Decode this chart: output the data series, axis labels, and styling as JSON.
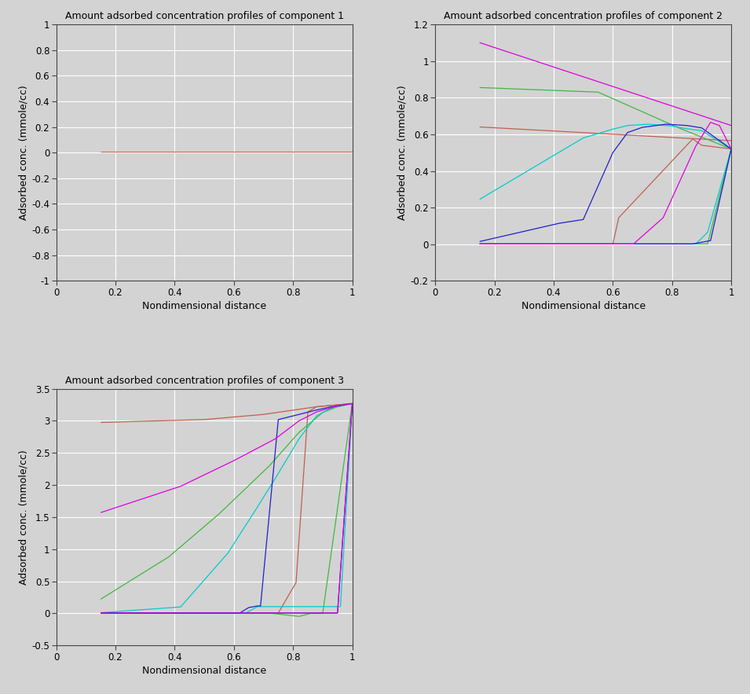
{
  "background_color": "#d3d3d3",
  "axes_color": "#d3d3d3",
  "grid_color": "#ffffff",
  "title1": "Amount adsorbed concentration profiles of component 1",
  "title2": "Amount adsorbed concentration profiles of component 2",
  "title3": "Amount adsorbed concentration profiles of component 3",
  "xlabel": "Nondimensional distance",
  "ylabel": "Adsorbed conc. (mmole/cc)",
  "comp1": {
    "ylim": [
      -1,
      1
    ],
    "yticks": [
      -1,
      -0.8,
      -0.6,
      -0.4,
      -0.2,
      0,
      0.2,
      0.4,
      0.6,
      0.8,
      1
    ],
    "xlim": [
      0,
      1
    ],
    "xticks": [
      0,
      0.2,
      0.4,
      0.6,
      0.8,
      1
    ],
    "lines": [
      {
        "x": [
          0.15,
          1.0
        ],
        "y": [
          0.008,
          0.008
        ],
        "color": "#c87060",
        "lw": 0.9
      }
    ]
  },
  "comp2": {
    "ylim": [
      -0.2,
      1.2
    ],
    "yticks": [
      -0.2,
      0,
      0.2,
      0.4,
      0.6,
      0.8,
      1.0,
      1.2
    ],
    "xlim": [
      0,
      1
    ],
    "xticks": [
      0,
      0.2,
      0.4,
      0.6,
      0.8,
      1
    ],
    "lines": [
      {
        "x": [
          0.15,
          1.0
        ],
        "y": [
          0.64,
          0.565
        ],
        "color": "#c06050",
        "lw": 0.9
      },
      {
        "x": [
          0.15,
          0.6,
          0.62,
          0.87,
          0.9,
          1.0
        ],
        "y": [
          0.002,
          0.002,
          0.145,
          0.575,
          0.54,
          0.52
        ],
        "color": "#c06050",
        "lw": 0.9
      },
      {
        "x": [
          0.15,
          0.55,
          0.83,
          1.0
        ],
        "y": [
          0.855,
          0.83,
          0.63,
          0.52
        ],
        "color": "#40b840",
        "lw": 0.9
      },
      {
        "x": [
          0.15,
          0.68,
          0.88,
          0.92,
          1.0
        ],
        "y": [
          0.002,
          0.002,
          0.002,
          0.002,
          0.52
        ],
        "color": "#40b840",
        "lw": 0.9
      },
      {
        "x": [
          0.15,
          0.5,
          0.6,
          0.65,
          0.72,
          0.8,
          0.85,
          0.9,
          1.0
        ],
        "y": [
          0.245,
          0.58,
          0.628,
          0.648,
          0.655,
          0.645,
          0.63,
          0.62,
          0.52
        ],
        "color": "#00cccc",
        "lw": 0.9
      },
      {
        "x": [
          0.15,
          0.68,
          0.72,
          0.88,
          0.92,
          1.0
        ],
        "y": [
          0.002,
          0.002,
          0.002,
          0.002,
          0.065,
          0.52
        ],
        "color": "#00cccc",
        "lw": 0.9
      },
      {
        "x": [
          0.15,
          0.42,
          0.5,
          0.6,
          0.65,
          0.7,
          0.78,
          0.85,
          0.9,
          1.0
        ],
        "y": [
          0.015,
          0.115,
          0.135,
          0.5,
          0.61,
          0.638,
          0.655,
          0.648,
          0.635,
          0.52
        ],
        "color": "#2020cc",
        "lw": 0.9
      },
      {
        "x": [
          0.15,
          0.75,
          0.87,
          0.93,
          1.0
        ],
        "y": [
          0.002,
          0.002,
          0.002,
          0.02,
          0.52
        ],
        "color": "#2020cc",
        "lw": 0.9
      },
      {
        "x": [
          0.15,
          1.0
        ],
        "y": [
          1.1,
          0.648
        ],
        "color": "#e000e0",
        "lw": 0.9
      },
      {
        "x": [
          0.15,
          0.67,
          0.77,
          0.88,
          0.93,
          0.96,
          1.0
        ],
        "y": [
          0.002,
          0.002,
          0.145,
          0.535,
          0.665,
          0.648,
          0.52
        ],
        "color": "#e000e0",
        "lw": 0.9
      }
    ]
  },
  "comp3": {
    "ylim": [
      -0.5,
      3.5
    ],
    "yticks": [
      -0.5,
      0,
      0.5,
      1.0,
      1.5,
      2.0,
      2.5,
      3.0,
      3.5
    ],
    "xlim": [
      0,
      1
    ],
    "xticks": [
      0,
      0.2,
      0.4,
      0.6,
      0.8,
      1
    ],
    "lines": [
      {
        "x": [
          0.15,
          0.5,
          0.7,
          0.88,
          1.0
        ],
        "y": [
          2.975,
          3.02,
          3.1,
          3.22,
          3.27
        ],
        "color": "#c06050",
        "lw": 0.9
      },
      {
        "x": [
          0.15,
          0.6,
          0.75,
          0.81,
          0.85,
          0.88,
          1.0
        ],
        "y": [
          0.005,
          0.005,
          0.005,
          0.48,
          3.14,
          3.22,
          3.27
        ],
        "color": "#c06050",
        "lw": 0.9
      },
      {
        "x": [
          0.15,
          0.38,
          0.55,
          0.72,
          0.82,
          0.9,
          0.95,
          1.0
        ],
        "y": [
          0.22,
          0.88,
          1.55,
          2.3,
          2.82,
          3.13,
          3.22,
          3.27
        ],
        "color": "#40b840",
        "lw": 0.9
      },
      {
        "x": [
          0.15,
          0.72,
          0.82,
          0.86,
          0.9,
          1.0
        ],
        "y": [
          0.005,
          0.005,
          -0.048,
          0.0,
          0.0,
          3.27
        ],
        "color": "#40b840",
        "lw": 0.9
      },
      {
        "x": [
          0.15,
          0.42,
          0.58,
          0.68,
          0.75,
          0.82,
          0.88,
          0.93,
          1.0
        ],
        "y": [
          0.01,
          0.1,
          0.94,
          1.66,
          2.18,
          2.72,
          3.08,
          3.2,
          3.27
        ],
        "color": "#00cccc",
        "lw": 0.9
      },
      {
        "x": [
          0.15,
          0.64,
          0.68,
          0.82,
          0.9,
          0.96,
          1.0
        ],
        "y": [
          0.005,
          0.005,
          0.105,
          0.105,
          0.105,
          0.105,
          3.27
        ],
        "color": "#00cccc",
        "lw": 0.9
      },
      {
        "x": [
          0.15,
          0.62,
          0.65,
          0.68,
          0.69,
          0.75,
          0.82,
          0.88,
          0.93,
          1.0
        ],
        "y": [
          0.005,
          0.005,
          0.09,
          0.115,
          0.115,
          3.02,
          3.1,
          3.17,
          3.22,
          3.27
        ],
        "color": "#2020cc",
        "lw": 0.9
      },
      {
        "x": [
          0.15,
          0.72,
          0.82,
          0.9,
          0.95,
          1.0
        ],
        "y": [
          0.005,
          0.005,
          0.005,
          0.005,
          0.005,
          3.27
        ],
        "color": "#2020cc",
        "lw": 0.9
      },
      {
        "x": [
          0.15,
          0.42,
          0.6,
          0.74,
          0.82,
          0.88,
          0.94,
          1.0
        ],
        "y": [
          1.57,
          1.98,
          2.38,
          2.72,
          3.0,
          3.14,
          3.22,
          3.27
        ],
        "color": "#e000e0",
        "lw": 0.9
      },
      {
        "x": [
          0.15,
          0.72,
          0.82,
          0.9,
          0.95,
          1.0
        ],
        "y": [
          0.005,
          0.005,
          0.005,
          0.005,
          0.005,
          3.27
        ],
        "color": "#e000e0",
        "lw": 0.9
      }
    ]
  }
}
